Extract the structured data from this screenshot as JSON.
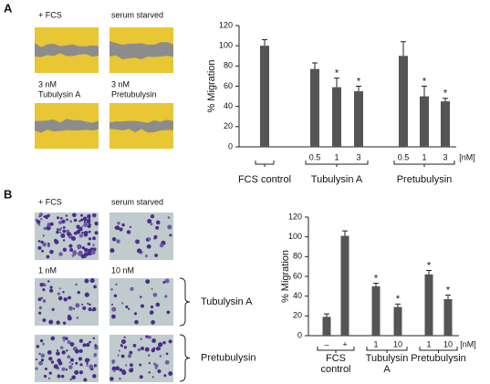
{
  "panels": [
    {
      "label": "A",
      "image_labels": [
        [
          "+ FCS"
        ],
        [
          "serum starved"
        ],
        [
          "3 nM",
          "Tubulysin A"
        ],
        [
          "3 nM",
          "Pretubulysin"
        ]
      ]
    },
    {
      "label": "B",
      "image_labels": [
        [
          "+ FCS"
        ],
        [
          "serum starved"
        ],
        [
          "1 nM"
        ],
        [
          "10 nM"
        ]
      ],
      "row_labels": [
        "Tubulysin A",
        "Pretubulysin"
      ]
    }
  ],
  "chart_data": [
    {
      "type": "grouped-bar",
      "y_label": "% Migration",
      "unit": "[nM]",
      "color": "#555555",
      "ylim": [
        0,
        120
      ],
      "yticks": [
        0,
        20,
        40,
        60,
        80,
        100,
        120
      ],
      "groups": [
        {
          "name": [
            "FCS control"
          ],
          "categories": [
            null
          ],
          "values": [
            100
          ],
          "errors": [
            6
          ],
          "marks": [
            null
          ]
        },
        {
          "name": [
            "Tubulysin A"
          ],
          "categories": [
            "0.5",
            "1",
            "3"
          ],
          "values": [
            77,
            59,
            55
          ],
          "errors": [
            6,
            9,
            5
          ],
          "marks": [
            null,
            "*",
            "*"
          ]
        },
        {
          "name": [
            "Pretubulysin"
          ],
          "categories": [
            "0.5",
            "1",
            "3"
          ],
          "values": [
            90,
            50,
            45
          ],
          "errors": [
            14,
            10,
            3
          ],
          "marks": [
            null,
            "*",
            "*"
          ]
        }
      ]
    },
    {
      "type": "grouped-bar",
      "y_label": "% Migration",
      "unit": "[nM]",
      "color": "#555555",
      "ylim": [
        0,
        120
      ],
      "yticks": [
        0,
        20,
        40,
        60,
        80,
        100,
        120
      ],
      "groups": [
        {
          "name": [
            "FCS",
            "control"
          ],
          "categories": [
            "–",
            "+"
          ],
          "values": [
            19,
            101
          ],
          "errors": [
            3,
            5
          ],
          "marks": [
            null,
            null
          ]
        },
        {
          "name": [
            "Tubulysin",
            "A"
          ],
          "categories": [
            "1",
            "10"
          ],
          "values": [
            50,
            29
          ],
          "errors": [
            3,
            3
          ],
          "marks": [
            "*",
            "*"
          ]
        },
        {
          "name": [
            "Pretubulysin"
          ],
          "categories": [
            "1",
            "10"
          ],
          "values": [
            62,
            37
          ],
          "errors": [
            4,
            4
          ],
          "marks": [
            "*",
            "*"
          ]
        }
      ]
    }
  ]
}
